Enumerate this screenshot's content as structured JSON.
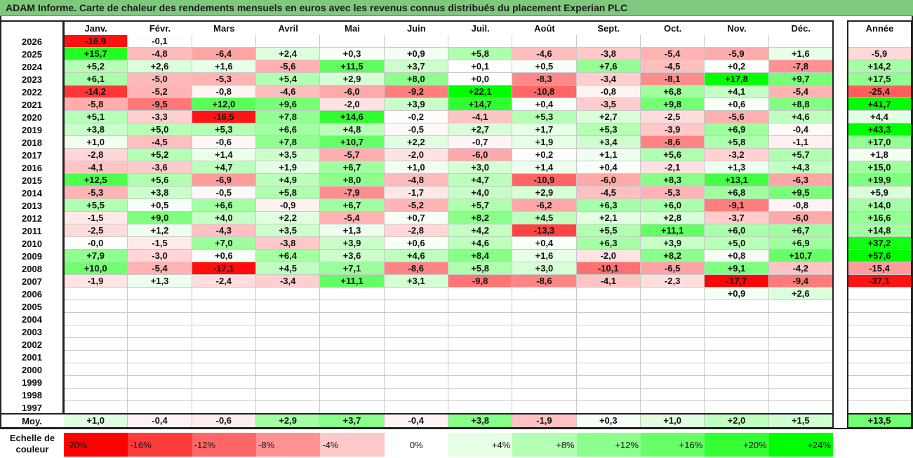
{
  "title": "ADAM Informe. Carte de chaleur des rendements mensuels en euros avec les revenus connus distribués du placement Experian PLC",
  "chart_data": {
    "type": "heatmap",
    "columns": [
      "Janv.",
      "Févr.",
      "Mars",
      "Avril",
      "Mai",
      "Juin",
      "Juil.",
      "Août",
      "Sept.",
      "Oct.",
      "Nov.",
      "Déc."
    ],
    "year_column": "Année",
    "rows": [
      {
        "year": "2026",
        "months": [
          "-16,9",
          "-0,1",
          "",
          "",
          "",
          "",
          "",
          "",
          "",
          "",
          "",
          ""
        ],
        "annual": ""
      },
      {
        "year": "2025",
        "months": [
          "+15,7",
          "-4,8",
          "-6,4",
          "+2,4",
          "+0,3",
          "+0,9",
          "+5,8",
          "-4,6",
          "-3,8",
          "-5,4",
          "-5,9",
          "+1,6"
        ],
        "annual": "-5,9"
      },
      {
        "year": "2024",
        "months": [
          "+5,2",
          "+2,6",
          "+1,6",
          "-5,6",
          "+11,5",
          "+3,7",
          "+0,1",
          "+0,5",
          "+7,6",
          "-4,5",
          "+0,2",
          "-7,8"
        ],
        "annual": "+14,2"
      },
      {
        "year": "2023",
        "months": [
          "+6,1",
          "-5,0",
          "-5,3",
          "+5,4",
          "+2,9",
          "+8,0",
          "+0,0",
          "-8,3",
          "-3,4",
          "-8,1",
          "+17,8",
          "+9,7"
        ],
        "annual": "+17,5"
      },
      {
        "year": "2022",
        "months": [
          "-14,2",
          "-5,2",
          "-0,8",
          "-4,6",
          "-6,0",
          "-9,2",
          "+22,1",
          "-10,8",
          "-0,8",
          "+6,8",
          "+4,1",
          "-5,4"
        ],
        "annual": "-25,4"
      },
      {
        "year": "2021",
        "months": [
          "-5,8",
          "-9,5",
          "+12,0",
          "+9,6",
          "-2,0",
          "+3,9",
          "+14,7",
          "+0,4",
          "-3,5",
          "+9,8",
          "+0,6",
          "+8,8"
        ],
        "annual": "+41,7"
      },
      {
        "year": "2020",
        "months": [
          "+5,1",
          "-3,3",
          "-16,5",
          "+7,8",
          "+14,6",
          "-0,2",
          "-4,1",
          "+5,3",
          "+2,7",
          "-2,5",
          "-5,6",
          "+4,6"
        ],
        "annual": "+4,4"
      },
      {
        "year": "2019",
        "months": [
          "+3,8",
          "+5,0",
          "+5,3",
          "+6,6",
          "+4,8",
          "-0,5",
          "+2,7",
          "+1,7",
          "+5,3",
          "-3,9",
          "+6,9",
          "-0,4"
        ],
        "annual": "+43,3"
      },
      {
        "year": "2018",
        "months": [
          "+1,0",
          "-4,5",
          "-0,6",
          "+7,8",
          "+10,7",
          "+2,2",
          "-0,7",
          "+1,9",
          "+3,4",
          "-8,6",
          "+5,8",
          "-1,1"
        ],
        "annual": "+17,0"
      },
      {
        "year": "2017",
        "months": [
          "-2,8",
          "+5,2",
          "+1,4",
          "+3,5",
          "-5,7",
          "-2,0",
          "-6,0",
          "+0,2",
          "+1,1",
          "+5,6",
          "-3,2",
          "+5,7"
        ],
        "annual": "+1,8"
      },
      {
        "year": "2016",
        "months": [
          "-4,1",
          "-3,6",
          "+4,7",
          "+1,9",
          "+6,7",
          "+1,0",
          "+3,0",
          "+1,4",
          "+0,4",
          "-2,1",
          "+1,3",
          "+4,3"
        ],
        "annual": "+15,0"
      },
      {
        "year": "2015",
        "months": [
          "+12,5",
          "+5,6",
          "-6,9",
          "+4,9",
          "+8,0",
          "-4,8",
          "+4,7",
          "-10,9",
          "-6,0",
          "+8,3",
          "+13,1",
          "-6,3"
        ],
        "annual": "+19,9"
      },
      {
        "year": "2014",
        "months": [
          "-5,3",
          "+3,8",
          "-0,5",
          "+5,8",
          "-7,9",
          "-1,7",
          "+4,0",
          "+2,9",
          "-4,5",
          "-5,3",
          "+6,8",
          "+9,5"
        ],
        "annual": "+5,9"
      },
      {
        "year": "2013",
        "months": [
          "+5,5",
          "+0,5",
          "+6,6",
          "-0,9",
          "+6,7",
          "-5,2",
          "+5,7",
          "-6,2",
          "+6,3",
          "+6,0",
          "-9,1",
          "-0,8"
        ],
        "annual": "+14,0"
      },
      {
        "year": "2012",
        "months": [
          "-1,5",
          "+9,0",
          "+4,0",
          "+2,2",
          "-5,4",
          "+0,7",
          "+8,2",
          "+4,5",
          "+2,1",
          "+2,8",
          "-3,7",
          "-6,0"
        ],
        "annual": "+16,6"
      },
      {
        "year": "2011",
        "months": [
          "-2,5",
          "+1,2",
          "-4,3",
          "+3,5",
          "+1,3",
          "-2,8",
          "+4,2",
          "-13,3",
          "+5,5",
          "+11,1",
          "+6,0",
          "+6,7"
        ],
        "annual": "+14,8"
      },
      {
        "year": "2010",
        "months": [
          "-0,0",
          "-1,5",
          "+7,0",
          "-3,8",
          "+3,9",
          "+0,6",
          "+4,6",
          "+0,4",
          "+6,3",
          "+3,9",
          "+5,0",
          "+6,9"
        ],
        "annual": "+37,2"
      },
      {
        "year": "2009",
        "months": [
          "+7,9",
          "-3,0",
          "+0,6",
          "+6,4",
          "+3,6",
          "+4,6",
          "+8,4",
          "+1,6",
          "-2,0",
          "+8,2",
          "+0,8",
          "+10,7"
        ],
        "annual": "+57,6"
      },
      {
        "year": "2008",
        "months": [
          "+10,0",
          "-5,4",
          "-17,1",
          "+4,5",
          "+7,1",
          "-8,6",
          "+5,8",
          "+3,0",
          "-10,1",
          "-6,5",
          "+9,1",
          "-4,2"
        ],
        "annual": "-15,4"
      },
      {
        "year": "2007",
        "months": [
          "-1,9",
          "+1,3",
          "-2,4",
          "-3,4",
          "+11,1",
          "+3,1",
          "-9,8",
          "-8,6",
          "-4,1",
          "-2,3",
          "-17,7",
          "-9,4"
        ],
        "annual": "-37,1"
      },
      {
        "year": "2006",
        "months": [
          "",
          "",
          "",
          "",
          "",
          "",
          "",
          "",
          "",
          "",
          "+0,9",
          "+2,6"
        ],
        "annual": ""
      },
      {
        "year": "2005",
        "months": [
          "",
          "",
          "",
          "",
          "",
          "",
          "",
          "",
          "",
          "",
          "",
          ""
        ],
        "annual": ""
      },
      {
        "year": "2004",
        "months": [
          "",
          "",
          "",
          "",
          "",
          "",
          "",
          "",
          "",
          "",
          "",
          ""
        ],
        "annual": ""
      },
      {
        "year": "2003",
        "months": [
          "",
          "",
          "",
          "",
          "",
          "",
          "",
          "",
          "",
          "",
          "",
          ""
        ],
        "annual": ""
      },
      {
        "year": "2002",
        "months": [
          "",
          "",
          "",
          "",
          "",
          "",
          "",
          "",
          "",
          "",
          "",
          ""
        ],
        "annual": ""
      },
      {
        "year": "2001",
        "months": [
          "",
          "",
          "",
          "",
          "",
          "",
          "",
          "",
          "",
          "",
          "",
          ""
        ],
        "annual": ""
      },
      {
        "year": "2000",
        "months": [
          "",
          "",
          "",
          "",
          "",
          "",
          "",
          "",
          "",
          "",
          "",
          ""
        ],
        "annual": ""
      },
      {
        "year": "1999",
        "months": [
          "",
          "",
          "",
          "",
          "",
          "",
          "",
          "",
          "",
          "",
          "",
          ""
        ],
        "annual": ""
      },
      {
        "year": "1998",
        "months": [
          "",
          "",
          "",
          "",
          "",
          "",
          "",
          "",
          "",
          "",
          "",
          ""
        ],
        "annual": ""
      },
      {
        "year": "1997",
        "months": [
          "",
          "",
          "",
          "",
          "",
          "",
          "",
          "",
          "",
          "",
          "",
          ""
        ],
        "annual": ""
      }
    ],
    "average": {
      "label": "Moy.",
      "months": [
        "+1,0",
        "-0,4",
        "-0,6",
        "+2,9",
        "+3,7",
        "-0,4",
        "+3,8",
        "-1,9",
        "+0,3",
        "+1,0",
        "+2,0",
        "+1,5"
      ],
      "annual": "+13,5"
    },
    "legend": {
      "label": "Echelle de couleur",
      "steps": [
        "-20%",
        "-16%",
        "-12%",
        "-8%",
        "-4%",
        "0%",
        "+4%",
        "+8%",
        "+12%",
        "+16%",
        "+20%",
        "+24%"
      ],
      "colors": [
        "#ff0000",
        "#ff3b3b",
        "#ff6767",
        "#ff9393",
        "#ffc9c9",
        "#ffffff",
        "#e6ffe6",
        "#b3ffb3",
        "#8cff8c",
        "#66ff66",
        "#33ff33",
        "#00ff00"
      ]
    }
  }
}
